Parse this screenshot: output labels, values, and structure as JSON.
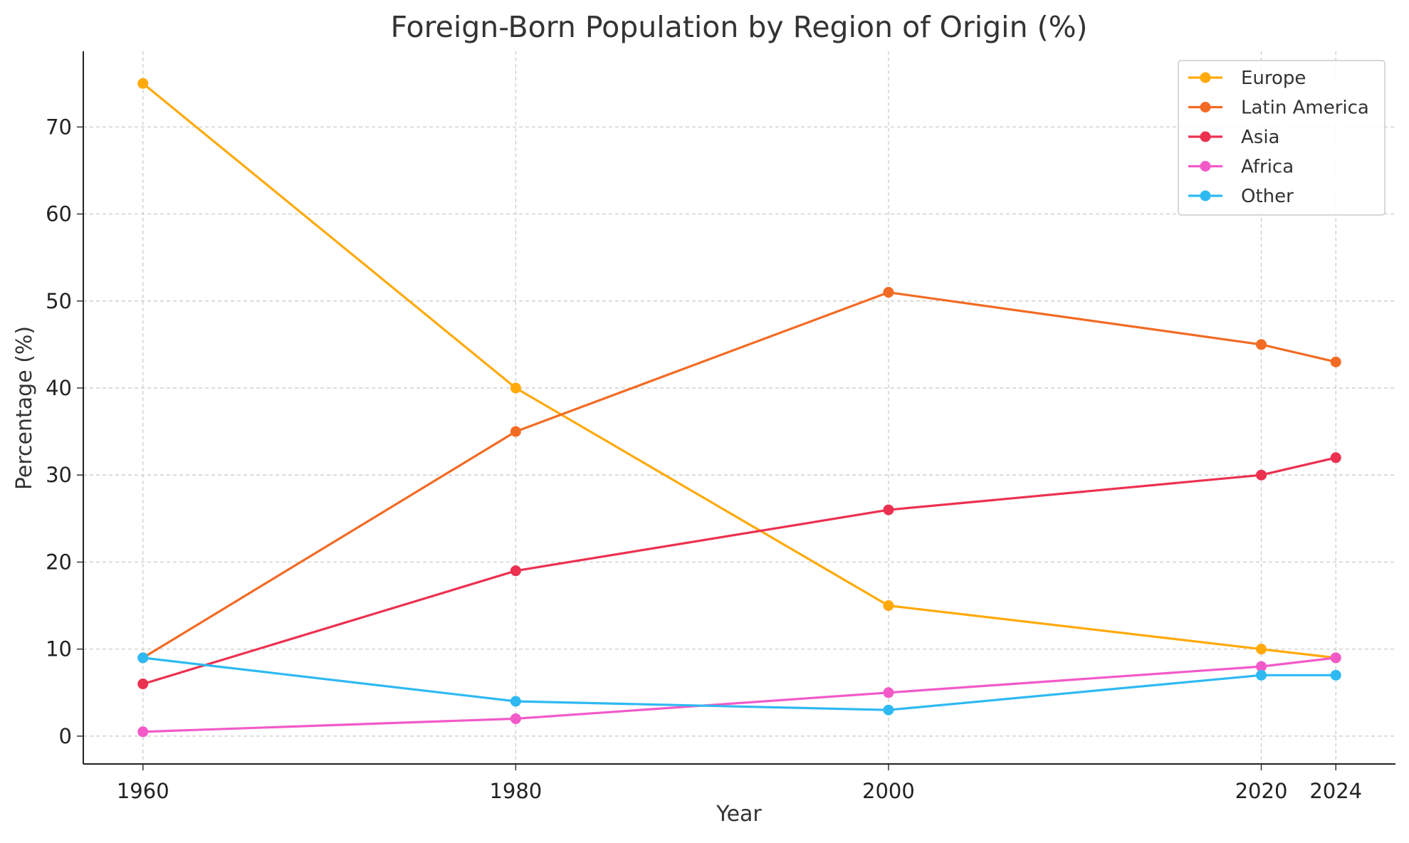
{
  "chart_data": {
    "type": "line",
    "title": "Foreign-Born Population by Region of Origin (%)",
    "xlabel": "Year",
    "ylabel": "Percentage (%)",
    "x": [
      1960,
      1980,
      2000,
      2020,
      2024
    ],
    "x_ticks": [
      "1960",
      "1980",
      "2000",
      "2020",
      "2024"
    ],
    "y_ticks": [
      "0",
      "10",
      "20",
      "30",
      "40",
      "50",
      "60",
      "70"
    ],
    "xlim": [
      1956.8,
      2027.2
    ],
    "ylim": [
      -3.2,
      78.7
    ],
    "grid": true,
    "legend_position": "top-right",
    "series": [
      {
        "name": "Europe",
        "color": "#FFA90A",
        "values": [
          75,
          40,
          15,
          10,
          9
        ]
      },
      {
        "name": "Latin America",
        "color": "#F26B24",
        "values": [
          9,
          35,
          51,
          45,
          43
        ]
      },
      {
        "name": "Asia",
        "color": "#EC3150",
        "values": [
          6,
          19,
          26,
          30,
          32
        ]
      },
      {
        "name": "Africa",
        "color": "#F25AC8",
        "values": [
          0.5,
          2,
          5,
          8,
          9
        ]
      },
      {
        "name": "Other",
        "color": "#2EB9F2",
        "values": [
          9,
          4,
          3,
          7,
          7
        ]
      }
    ]
  }
}
